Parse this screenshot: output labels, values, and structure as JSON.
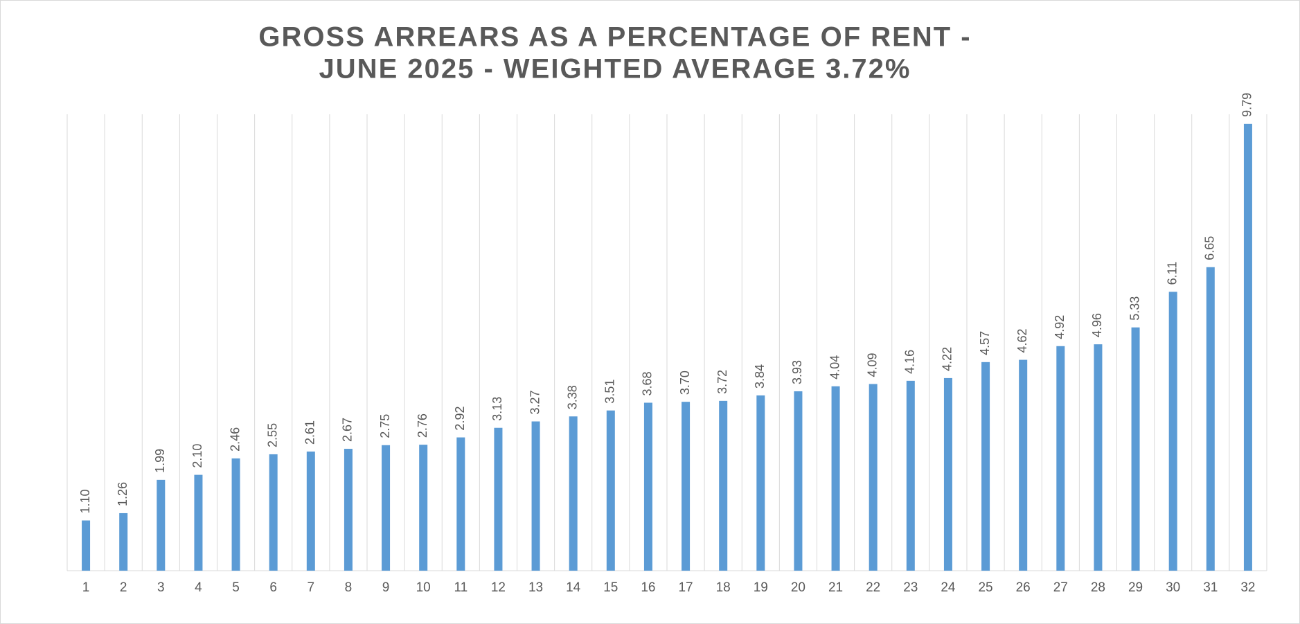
{
  "chart_data": {
    "type": "bar",
    "title": [
      "GROSS ARREARS AS A PERCENTAGE OF RENT -",
      "JUNE 2025 - WEIGHTED AVERAGE 3.72%"
    ],
    "categories": [
      "1",
      "2",
      "3",
      "4",
      "5",
      "6",
      "7",
      "8",
      "9",
      "10",
      "11",
      "12",
      "13",
      "14",
      "15",
      "16",
      "17",
      "18",
      "19",
      "20",
      "21",
      "22",
      "23",
      "24",
      "25",
      "26",
      "27",
      "28",
      "29",
      "30",
      "31",
      "32"
    ],
    "values": [
      1.1,
      1.26,
      1.99,
      2.1,
      2.46,
      2.55,
      2.61,
      2.67,
      2.75,
      2.76,
      2.92,
      3.13,
      3.27,
      3.38,
      3.51,
      3.68,
      3.7,
      3.72,
      3.84,
      3.93,
      4.04,
      4.09,
      4.16,
      4.22,
      4.57,
      4.62,
      4.92,
      4.96,
      5.33,
      6.11,
      6.65,
      9.79
    ],
    "value_labels": [
      "1.10",
      "1.26",
      "1.99",
      "2.10",
      "2.46",
      "2.55",
      "2.61",
      "2.67",
      "2.75",
      "2.76",
      "2.92",
      "3.13",
      "3.27",
      "3.38",
      "3.51",
      "3.68",
      "3.70",
      "3.72",
      "3.84",
      "3.93",
      "4.04",
      "4.09",
      "4.16",
      "4.22",
      "4.57",
      "4.62",
      "4.92",
      "4.96",
      "5.33",
      "6.11",
      "6.65",
      "9.79"
    ],
    "color": "#5b9bd5",
    "ylim": [
      0,
      10
    ],
    "grid": true
  }
}
